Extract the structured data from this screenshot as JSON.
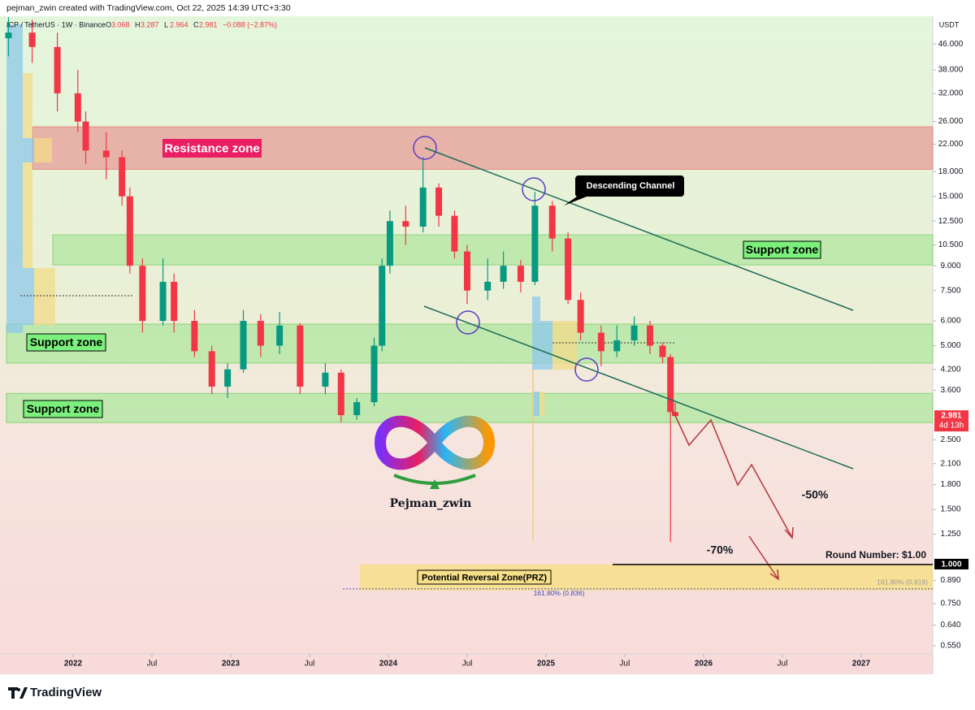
{
  "header": {
    "credit": "pejman_zwin created with TradingView.com, Oct 22, 2025 14:39 UTC+3:30",
    "symbol": "ICP / TetherUS · 1W · Binance",
    "ohlc": [
      {
        "key": "O",
        "value": 3.068
      },
      {
        "key": "H",
        "value": 3.287
      },
      {
        "key": "L",
        "value": 2.964
      },
      {
        "key": "C",
        "value": 2.981
      }
    ],
    "change": "−0.088 (−2.87%)",
    "axis_unit": "USDT"
  },
  "chart_data": {
    "type": "candlestick",
    "log_scale": true,
    "grid": false,
    "up_color": "#089981",
    "down_color": "#f23645",
    "candles": {
      "x": [
        2021.59,
        2021.74,
        2021.9,
        2022.03,
        2022.08,
        2022.21,
        2022.31,
        2022.36,
        2022.44,
        2022.57,
        2022.64,
        2022.77,
        2022.88,
        2022.98,
        2023.08,
        2023.19,
        2023.31,
        2023.44,
        2023.6,
        2023.7,
        2023.8,
        2023.91,
        2023.96,
        2024.01,
        2024.11,
        2024.22,
        2024.32,
        2024.42,
        2024.5,
        2024.63,
        2024.73,
        2024.84,
        2024.93,
        2025.04,
        2025.14,
        2025.22,
        2025.35,
        2025.45,
        2025.56,
        2025.66,
        2025.74,
        2025.79,
        2025.82
      ],
      "open": [
        48,
        50,
        45,
        32,
        26,
        21,
        20,
        15,
        9,
        6,
        8,
        6,
        4.8,
        3.7,
        4.2,
        6,
        5,
        5.8,
        3.7,
        4.1,
        3.0,
        3.3,
        5,
        9,
        12.5,
        12,
        16,
        13,
        10,
        7.5,
        8,
        9,
        8,
        14,
        11,
        7,
        5.5,
        4.8,
        5.2,
        5.8,
        5,
        4.6,
        3.068
      ],
      "high": [
        56,
        55,
        50,
        38,
        28,
        24,
        21,
        16,
        9.5,
        9.5,
        8.5,
        6.5,
        5,
        4.4,
        6.5,
        6.3,
        6.4,
        5.9,
        4.4,
        4.2,
        3.4,
        5.3,
        9.5,
        13.5,
        14,
        20,
        16.5,
        13.5,
        10.5,
        9.5,
        10,
        9.4,
        15.5,
        14.5,
        11.5,
        7.4,
        5.8,
        5.8,
        6.2,
        6,
        5.1,
        4.7,
        3.287
      ],
      "low": [
        42,
        40,
        28,
        24,
        19,
        17,
        14,
        8.5,
        5.5,
        5.8,
        5.5,
        4.6,
        3.5,
        3.4,
        4.1,
        4.6,
        4.7,
        3.5,
        3.5,
        2.85,
        2.9,
        3.2,
        4.8,
        8.5,
        10.5,
        11.5,
        12,
        9.5,
        6.8,
        7,
        7.6,
        7.4,
        7.8,
        10,
        6.8,
        5.2,
        4.3,
        4.6,
        5,
        4.7,
        4.4,
        1.18,
        2.964
      ],
      "close": [
        50,
        45,
        32,
        26,
        21,
        20,
        15,
        9,
        6,
        8,
        6,
        4.8,
        3.7,
        4.2,
        6,
        5,
        5.8,
        3.7,
        4.1,
        3.0,
        3.3,
        5,
        9,
        12.5,
        12,
        16,
        13,
        10,
        7.5,
        8,
        9,
        8,
        14,
        11,
        7,
        5.5,
        4.8,
        5.2,
        5.8,
        5,
        4.6,
        3.068,
        2.981
      ]
    },
    "xlim": [
      2021.536,
      2027.454
    ],
    "xticks": [
      2022,
      {
        "value": 2022.5,
        "label": "Jul"
      },
      2023,
      {
        "value": 2023.5,
        "label": "Jul"
      },
      2024,
      {
        "value": 2024.5,
        "label": "Jul"
      },
      2025,
      {
        "value": 2025.5,
        "label": "Jul"
      },
      2026,
      {
        "value": 2026.5,
        "label": "Jul"
      },
      2027
    ],
    "ylim": [
      0.518,
      56.4
    ],
    "yticks": [
      {
        "value": 46,
        "label": "46.000"
      },
      {
        "value": 38,
        "label": "38.000"
      },
      {
        "value": 32,
        "label": "32.000"
      },
      {
        "value": 26,
        "label": "26.000"
      },
      {
        "value": 22,
        "label": "22.000"
      },
      {
        "value": 18,
        "label": "18.000"
      },
      {
        "value": 15,
        "label": "15.000"
      },
      {
        "value": 12.5,
        "label": "12.500"
      },
      {
        "value": 10.5,
        "label": "10.500"
      },
      {
        "value": 9,
        "label": "9.000"
      },
      {
        "value": 7.5,
        "label": "7.500"
      },
      {
        "value": 6,
        "label": "6.000"
      },
      {
        "value": 5,
        "label": "5.000"
      },
      {
        "value": 4.2,
        "label": "4.200"
      },
      {
        "value": 3.6,
        "label": "3.600"
      },
      {
        "value": 2.5,
        "label": "2.500"
      },
      {
        "value": 2.1,
        "label": "2.100"
      },
      {
        "value": 1.8,
        "label": "1.800"
      },
      {
        "value": 1.5,
        "label": "1.500"
      },
      {
        "value": 1.25,
        "label": "1.250"
      },
      {
        "value": 0.89,
        "label": "0.890"
      },
      {
        "value": 0.75,
        "label": "0.750"
      },
      {
        "value": 0.64,
        "label": "0.640"
      },
      {
        "value": 0.55,
        "label": "0.550"
      }
    ],
    "zones": [
      {
        "name": "Resistance zone",
        "from": 18.3,
        "to": 25,
        "color": "#e8a9a0"
      },
      {
        "name": "Support zone",
        "from": 9.06,
        "to": 11.3,
        "color": "#b8e8a8"
      },
      {
        "name": "Support zone",
        "from": 4.4,
        "to": 5.86,
        "color": "#b8e8a8"
      },
      {
        "name": "Support zone",
        "from": 2.84,
        "to": 3.52,
        "color": "#b8e8a8"
      },
      {
        "name": "Potential Reversal Zone(PRZ)",
        "from": 0.826,
        "to": 1,
        "color": "#f7e08a"
      }
    ],
    "price_markers": [
      {
        "value": 2.981,
        "label": "2.981",
        "sublabel": "4d 13h",
        "color": "#f23645"
      },
      {
        "value": 1,
        "label": "1.000",
        "color": "#000000"
      }
    ],
    "fib_levels": [
      {
        "value": 0.836,
        "label": "161.80% (0.836)"
      },
      {
        "value": 0.819,
        "label": "161.80% (0.819)"
      }
    ],
    "annotations": {
      "round_number": "Round Number: $1.00",
      "channel": "Descending Channel",
      "drop_50": "-50%",
      "drop_70": "-70%"
    },
    "watermark": "Pejman_zwin"
  },
  "footer": {
    "brand": "TradingView"
  }
}
